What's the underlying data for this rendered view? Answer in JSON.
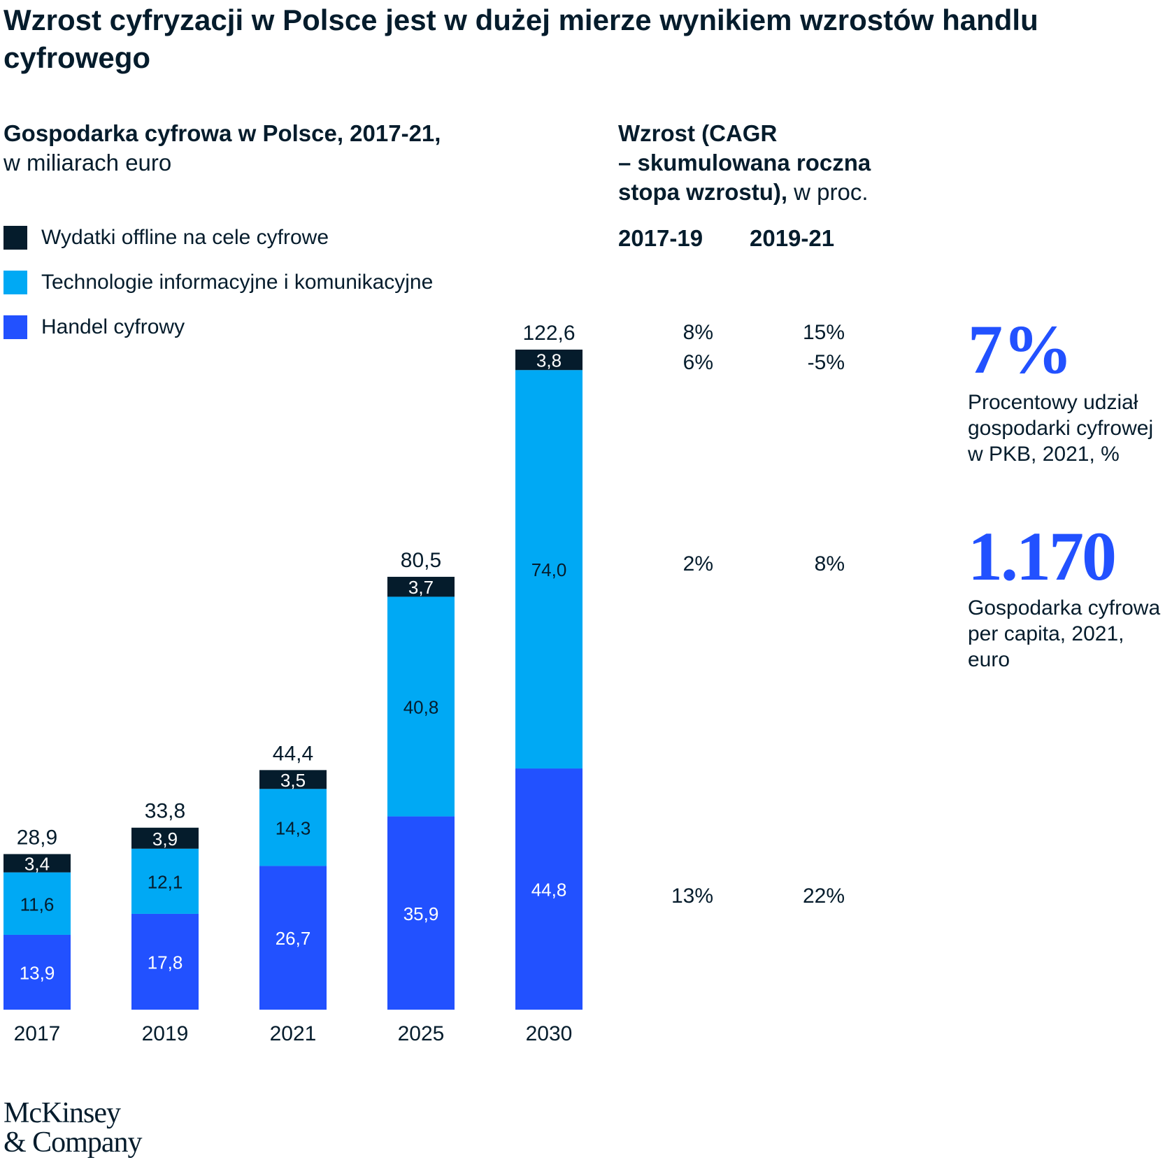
{
  "title": "Wzrost cyfryzacji w Polsce jest w dużej mierze wynikiem wzrostów handlu cyfrowego",
  "subtitle_bold": "Gospodarka cyfrowa w Polsce, 2017-21,",
  "subtitle_unit": "w miliarach euro",
  "growth_header": {
    "line1": "Wzrost (CAGR",
    "line2": "– skumulowana roczna",
    "line3_bold": "stopa wzrostu),",
    "line3_rest": " w proc.",
    "periods": [
      "2017-19",
      "2019-21"
    ]
  },
  "legend": [
    {
      "label": "Wydatki offline na cele cyfrowe",
      "color": "#051c2c"
    },
    {
      "label": "Technologie informacyjne i komunikacyjne",
      "color": "#00a9f4"
    },
    {
      "label": "Handel cyfrowy",
      "color": "#2251ff"
    }
  ],
  "cagr_rows": [
    {
      "name": "total",
      "values": [
        "8%",
        "15%"
      ]
    },
    {
      "name": "offline",
      "values": [
        "6%",
        "-5%"
      ]
    },
    {
      "name": "ict",
      "values": [
        "2%",
        "8%"
      ]
    },
    {
      "name": "commerce",
      "values": [
        "13%",
        "22%"
      ]
    }
  ],
  "stats": [
    {
      "value": "7%",
      "label_lines": [
        "Procentowy udział",
        "gospodarki cyfrowej",
        "w PKB, 2021, %"
      ]
    },
    {
      "value": "1.170",
      "label_lines": [
        "Gospodarka cyfrowa",
        "per capita, 2021,",
        "euro"
      ]
    }
  ],
  "logo": {
    "line1": "McKinsey",
    "line2": "& Company"
  },
  "chart_data": {
    "type": "bar",
    "stacked": true,
    "categories": [
      "2017",
      "2019",
      "2021",
      "2025",
      "2030"
    ],
    "series": [
      {
        "name": "Handel cyfrowy",
        "color": "#2251ff",
        "label_color": "#ffffff",
        "values": [
          13.9,
          17.8,
          26.7,
          35.9,
          44.8
        ],
        "labels": [
          "13,9",
          "17,8",
          "26,7",
          "35,9",
          "44,8"
        ]
      },
      {
        "name": "Technologie informacyjne i komunikacyjne",
        "color": "#00a9f4",
        "label_color": "#051c2c",
        "values": [
          11.6,
          12.1,
          14.3,
          40.8,
          74.0
        ],
        "labels": [
          "11,6",
          "12,1",
          "14,3",
          "40,8",
          "74,0"
        ]
      },
      {
        "name": "Wydatki offline na cele cyfrowe",
        "color": "#051c2c",
        "label_color": "#ffffff",
        "values": [
          3.4,
          3.9,
          3.5,
          3.7,
          3.8
        ],
        "labels": [
          "3,4",
          "3,9",
          "3,5",
          "3,7",
          "3,8"
        ]
      }
    ],
    "totals": [
      28.9,
      33.8,
      44.4,
      80.5,
      122.6
    ],
    "total_labels": [
      "28,9",
      "33,8",
      "44,4",
      "80,5",
      "122,6"
    ],
    "ylim": [
      0,
      122.6
    ],
    "grid": false
  }
}
